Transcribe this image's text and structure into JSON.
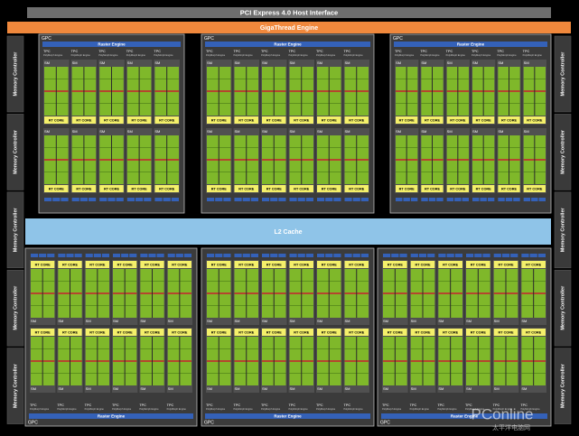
{
  "header": {
    "pcie": "PCI Express 4.0 Host Interface",
    "gigathread": "GigaThread Engine"
  },
  "memory_controller": "Memory Controller",
  "l2": "L2 Cache",
  "gpc": {
    "label": "GPC",
    "raster": "Raster Engine",
    "tpc": "TPC",
    "polymorph": "PolyMorph Engine",
    "sm": "SM",
    "rt": "RT CORE"
  },
  "watermark": {
    "brand": "PConline",
    "sub": "太平洋电脑网"
  }
}
